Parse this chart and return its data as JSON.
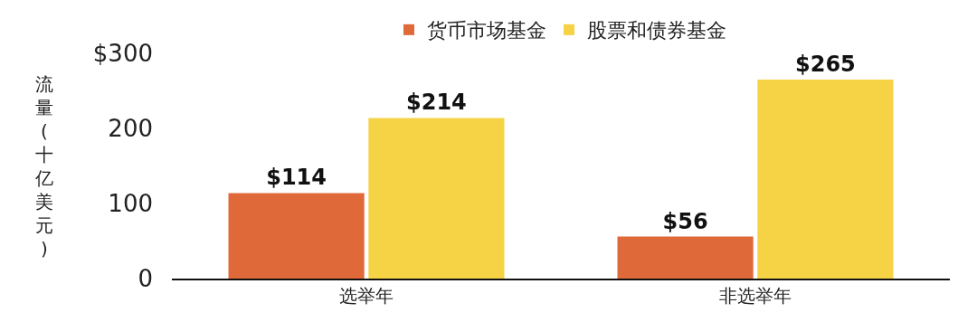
{
  "chart_data": {
    "type": "bar",
    "ylabel": "流量(十亿美元)",
    "categories": [
      "选举年",
      "非选举年"
    ],
    "series": [
      {
        "name": "货币市场基金",
        "color": "#e0693a",
        "values": [
          114,
          56
        ],
        "value_labels": [
          "$114",
          "$56"
        ]
      },
      {
        "name": "股票和债券基金",
        "color": "#f6d245",
        "values": [
          214,
          265
        ],
        "value_labels": [
          "$214",
          "$265"
        ]
      }
    ],
    "ylim": [
      0,
      300
    ],
    "yticks": [
      {
        "value": 0,
        "label": "0"
      },
      {
        "value": 100,
        "label": "100"
      },
      {
        "value": 200,
        "label": "200"
      },
      {
        "value": 300,
        "label": "$300"
      }
    ],
    "grid": false,
    "legend": "top"
  }
}
